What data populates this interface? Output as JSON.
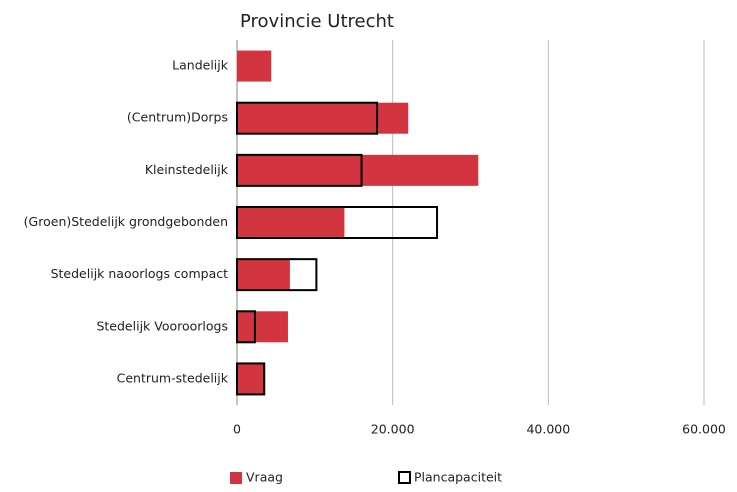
{
  "chart_data": {
    "type": "bar",
    "orientation": "horizontal",
    "title": "Provincie Utrecht",
    "categories": [
      "Landelijk",
      "(Centrum)Dorps",
      "Kleinstedelijk",
      "(Groen)Stedelijk grondgebonden",
      "Stedelijk naoorlogs compact",
      "Stedelijk Vooroorlogs",
      "Centrum-stedelijk"
    ],
    "series": [
      {
        "name": "Vraag",
        "color": "#d33540",
        "style": "filled",
        "values": [
          4400,
          22000,
          31000,
          13800,
          6800,
          6550,
          3500
        ]
      },
      {
        "name": "Plancapaciteit",
        "color": "#000000",
        "style": "outline",
        "values": [
          null,
          18000,
          16000,
          25700,
          10200,
          2300,
          3500
        ]
      }
    ],
    "xlim": [
      0,
      60000
    ],
    "xticks": [
      0,
      {
        "value": 20000,
        "label": "20.000"
      },
      {
        "value": 40000,
        "label": "40.000"
      },
      {
        "value": 60000,
        "label": "60.000"
      }
    ],
    "grid": true,
    "legend": "bottom"
  }
}
